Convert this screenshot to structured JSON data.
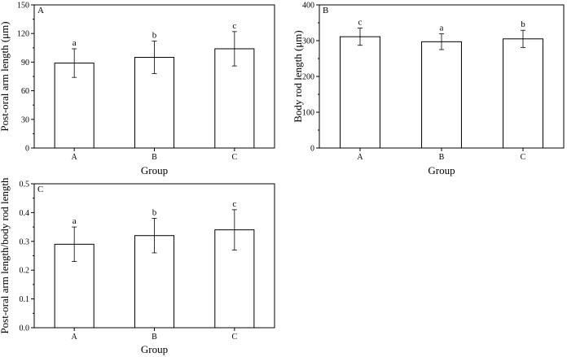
{
  "chart_data": [
    {
      "type": "bar",
      "panel_label": "A",
      "categories": [
        "A",
        "B",
        "C"
      ],
      "values": [
        89,
        95,
        104
      ],
      "errors": [
        15,
        17,
        18
      ],
      "significance": [
        "a",
        "b",
        "c"
      ],
      "xlabel": "Group",
      "ylabel": "Post-oral arm length (μm)",
      "ylim": [
        0,
        150
      ],
      "yticks": [
        "0",
        "30",
        "60",
        "90",
        "120",
        "150"
      ]
    },
    {
      "type": "bar",
      "panel_label": "B",
      "categories": [
        "A",
        "B",
        "C"
      ],
      "values": [
        311,
        297,
        305
      ],
      "errors": [
        24,
        22,
        24
      ],
      "significance": [
        "c",
        "a",
        "b"
      ],
      "xlabel": "Group",
      "ylabel": "Body rod length (μm)",
      "ylim": [
        0,
        400
      ],
      "yticks": [
        "0",
        "100",
        "200",
        "300",
        "400"
      ]
    },
    {
      "type": "bar",
      "panel_label": "C",
      "categories": [
        "A",
        "B",
        "C"
      ],
      "values": [
        0.29,
        0.32,
        0.34
      ],
      "errors": [
        0.06,
        0.06,
        0.07
      ],
      "significance": [
        "a",
        "b",
        "c"
      ],
      "xlabel": "Group",
      "ylabel": "Post-oral arm length/body rod length",
      "ylim": [
        0,
        0.5
      ],
      "yticks": [
        "0.0",
        "0.1",
        "0.2",
        "0.3",
        "0.4",
        "0.5"
      ]
    }
  ]
}
